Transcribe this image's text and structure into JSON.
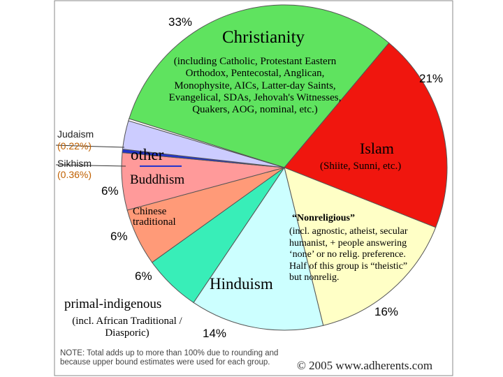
{
  "chart_data": {
    "type": "pie",
    "categories": [
      "Christianity",
      "Islam",
      "“Nonreligious”",
      "Hinduism",
      "primal-indigenous",
      "Chinese traditional",
      "Buddhism",
      "Sikhism",
      "other",
      "Judaism"
    ],
    "values": [
      33,
      21,
      16,
      14,
      6,
      6,
      6,
      0.36,
      3,
      0.22
    ],
    "value_labels": [
      "33%",
      "21%",
      "16%",
      "14%",
      "6%",
      "6%",
      "6%",
      "(0.36%)",
      null,
      "(0.22%)"
    ],
    "descriptions": [
      "(including Catholic, Protestant Eastern Orthodox, Pentecostal, Anglican, Monophysite, AICs, Latter-day Saints, Evangelical, SDAs, Jehovah's Witnesses, Quakers, AOG, nominal, etc.)",
      "(Shiite, Sunni, etc.)",
      "(incl. agnostic, atheist, secular humanist, + people answering ‘none’ or no relig. preference. Half of this group is “theistic” but nonrelig.",
      null,
      "(incl. African Traditional / Diasporic)",
      null,
      null,
      null,
      null,
      null
    ],
    "colors": [
      "#5fe35f",
      "#f0160e",
      "#ffffc6",
      "#ccffff",
      "#38eeb8",
      "#ff9a78",
      "#ff9a9a",
      "#2233cc",
      "#ccccff",
      "#ffffff"
    ],
    "note": "NOTE: Total adds up to more than 100% due to rounding and because upper bound estimates were used for each group.",
    "copyright": "© 2005 www.adherents.com"
  }
}
